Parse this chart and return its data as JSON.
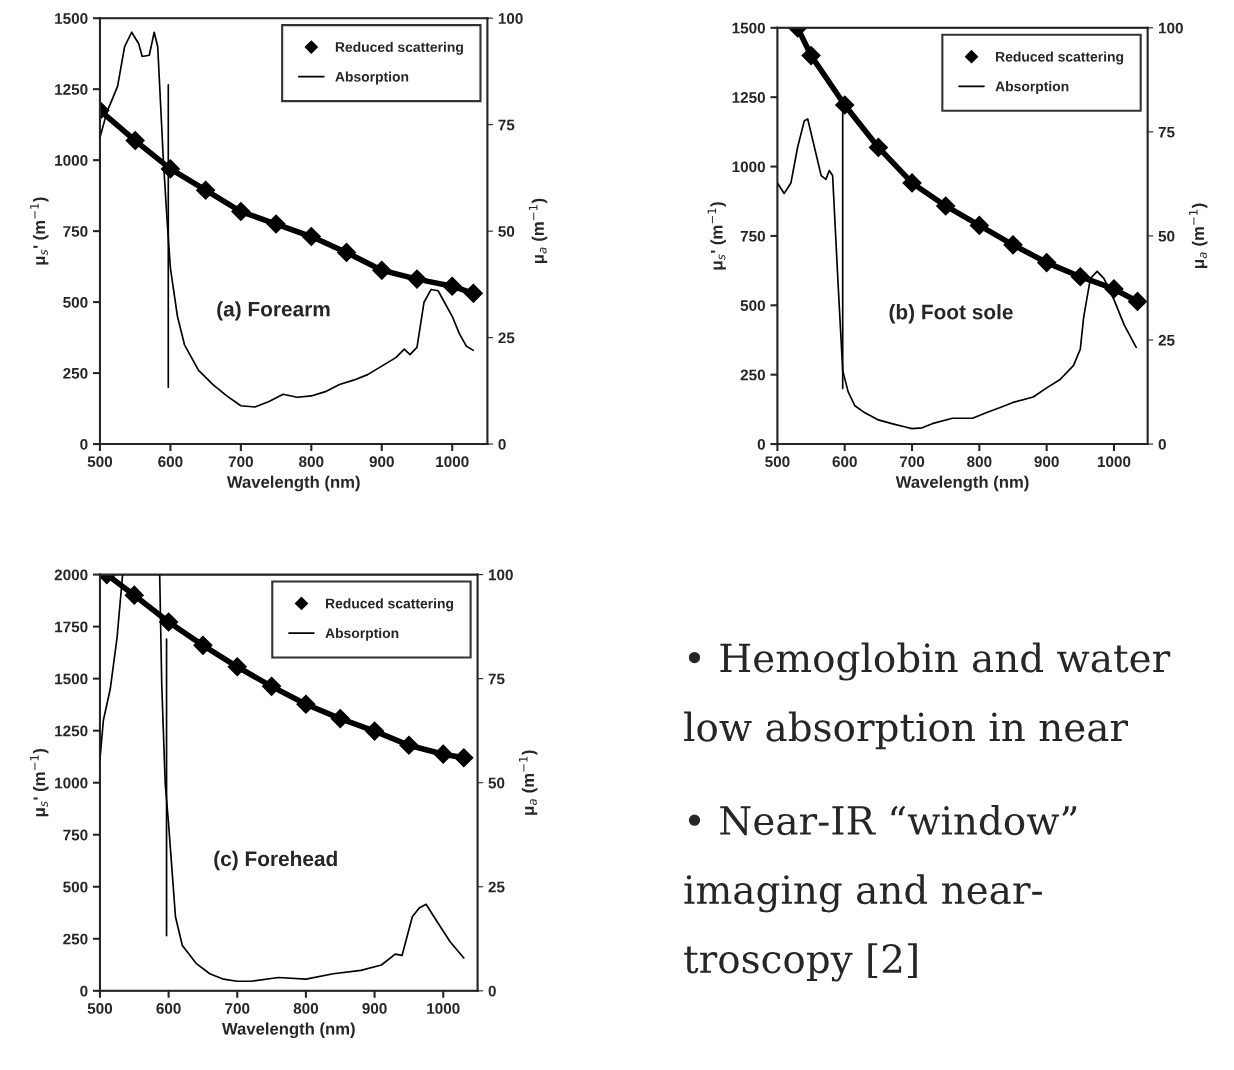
{
  "chart_data": [
    {
      "type": "line",
      "annotations": [
        "(a) Forearm"
      ],
      "xlabel": "Wavelength (nm)",
      "ylabel": "μ$_{s}$' (m$^{−1}$)",
      "y2label": "μ$_{a}$ (m$^{−1}$)",
      "xlim": [
        500,
        1050
      ],
      "xticks": [
        500,
        600,
        700,
        800,
        900,
        1000
      ],
      "ylim": [
        0,
        1500
      ],
      "yticks": [
        0,
        250,
        500,
        750,
        1000,
        1250,
        1500
      ],
      "y2lim": [
        0,
        100
      ],
      "y2ticks": [
        0,
        25,
        50,
        75,
        100
      ],
      "legend": "top right",
      "grid": false,
      "series": [
        {
          "name": "Reduced scattering",
          "color": "#000000",
          "marker": "diamond",
          "x": [
            500,
            550,
            600,
            650,
            700,
            750,
            800,
            850,
            900,
            950,
            1000,
            1030
          ],
          "values": [
            1175,
            1069,
            969,
            894,
            819,
            775,
            731,
            675,
            612,
            581,
            556,
            531
          ]
        },
        {
          "name": "Absorption",
          "color": "#000000",
          "axis": "y2",
          "x": [
            500,
            510,
            525,
            535,
            545,
            555,
            560,
            570,
            577,
            582,
            590,
            595,
            600,
            610,
            620,
            640,
            660,
            680,
            700,
            720,
            740,
            760,
            780,
            800,
            820,
            840,
            860,
            880,
            900,
            920,
            932,
            940,
            950,
            960,
            970,
            980,
            1000,
            1010,
            1020,
            1030
          ],
          "values": [
            72,
            78,
            84,
            93.3,
            96.7,
            94,
            91,
            91.3,
            96.7,
            93.3,
            66.7,
            53.3,
            41.3,
            30,
            23.3,
            17.3,
            14,
            11.3,
            9,
            8.7,
            10,
            11.7,
            11,
            11.3,
            12.3,
            14,
            15,
            16.3,
            18.3,
            20.3,
            22.3,
            21,
            22.7,
            33.3,
            36.3,
            36,
            30,
            26,
            23,
            22
          ]
        },
        {
          "color": "#000000",
          "x": [
            597,
            597
          ],
          "values": [
            200,
            1265
          ]
        }
      ]
    },
    {
      "type": "line",
      "annotations": [
        "(b) Foot sole"
      ],
      "xlabel": "Wavelength (nm)",
      "ylabel": "μ$_{s}$' (m$^{−1}$)",
      "y2label": "μ$_{a}$ (m$^{−1}$)",
      "xlim": [
        500,
        1050
      ],
      "xticks": [
        500,
        600,
        700,
        800,
        900,
        1000
      ],
      "ylim": [
        0,
        1500
      ],
      "yticks": [
        0,
        250,
        500,
        750,
        1000,
        1250,
        1500
      ],
      "y2lim": [
        0,
        100
      ],
      "y2ticks": [
        0,
        25,
        50,
        75,
        100
      ],
      "legend": "top right",
      "grid": false,
      "series": [
        {
          "name": "Reduced scattering",
          "color": "#000000",
          "marker": "diamond",
          "x": [
            530,
            550,
            600,
            650,
            700,
            750,
            800,
            850,
            900,
            950,
            1000,
            1035
          ],
          "values": [
            1500,
            1400,
            1222,
            1069,
            941,
            858,
            788,
            718,
            654,
            603,
            559,
            514
          ]
        },
        {
          "name": "Absorption",
          "color": "#000000",
          "axis": "y2",
          "x": [
            500,
            510,
            520,
            530,
            540,
            545,
            555,
            565,
            572,
            577,
            582,
            590,
            597,
            605,
            615,
            630,
            650,
            670,
            690,
            700,
            715,
            730,
            760,
            790,
            810,
            830,
            850,
            880,
            900,
            920,
            940,
            950,
            955,
            965,
            975,
            985,
            1000,
            1015,
            1033
          ],
          "values": [
            62.7,
            60.2,
            62.7,
            71.3,
            77.7,
            78.1,
            71.3,
            64.5,
            63.6,
            65.7,
            64.5,
            38.9,
            17.7,
            12.6,
            9.2,
            7.5,
            5.8,
            4.9,
            4.1,
            3.7,
            3.9,
            4.9,
            6.2,
            6.2,
            7.5,
            8.7,
            10,
            11.3,
            13.5,
            15.5,
            18.9,
            22.8,
            30.5,
            39.8,
            41.5,
            39.8,
            34.7,
            28.7,
            23.2
          ]
        },
        {
          "color": "#000000",
          "x": [
            597,
            597
          ],
          "values": [
            200,
            1225
          ]
        }
      ]
    },
    {
      "type": "line",
      "annotations": [
        "(c) Forehead"
      ],
      "xlabel": "Wavelength (nm)",
      "ylabel": "μ$_{s}$' (m$^{−1}$)",
      "y2label": "μ$_{a}$ (m$^{−1}$)",
      "xlim": [
        500,
        1050
      ],
      "xticks": [
        500,
        600,
        700,
        800,
        900,
        1000
      ],
      "ylim": [
        0,
        2000
      ],
      "yticks": [
        0,
        250,
        500,
        750,
        1000,
        1250,
        1500,
        1750,
        2000
      ],
      "y2lim": [
        0,
        100
      ],
      "y2ticks": [
        0,
        25,
        50,
        75,
        100
      ],
      "legend": "top right",
      "grid": false,
      "series": [
        {
          "name": "Reduced scattering",
          "color": "#000000",
          "marker": "diamond",
          "x": [
            510,
            550,
            600,
            650,
            700,
            750,
            800,
            850,
            900,
            950,
            1000,
            1030
          ],
          "values": [
            2000,
            1901,
            1772,
            1660,
            1557,
            1463,
            1377,
            1308,
            1248,
            1180,
            1137,
            1120
          ]
        },
        {
          "name": "Absorption",
          "color": "#000000",
          "axis": "y2",
          "x": [
            500,
            505,
            515,
            525,
            533,
            560,
            587,
            590,
            595,
            600,
            610,
            620,
            640,
            660,
            680,
            700,
            720,
            760,
            800,
            840,
            880,
            910,
            930,
            940,
            955,
            965,
            975,
            990,
            1010,
            1030
          ],
          "values": [
            55.6,
            65,
            72.5,
            85,
            100,
            null,
            100,
            73.6,
            50,
            40,
            17.8,
            10.9,
            6.6,
            4.1,
            2.8,
            2.3,
            2.3,
            3.2,
            2.8,
            4.1,
            4.9,
            6.2,
            8.8,
            8.5,
            17.8,
            19.9,
            20.8,
            16.9,
            11.8,
            7.9
          ]
        },
        {
          "color": "#000000",
          "x": [
            597,
            597
          ],
          "values": [
            265,
            1690
          ]
        }
      ]
    },
    {
      "type": "other",
      "annotations": [
        "• Hemoglobin and water",
        "low absorption in near",
        "• Near-IR “window”",
        "imaging and near-",
        "troscopy [2]"
      ]
    }
  ]
}
